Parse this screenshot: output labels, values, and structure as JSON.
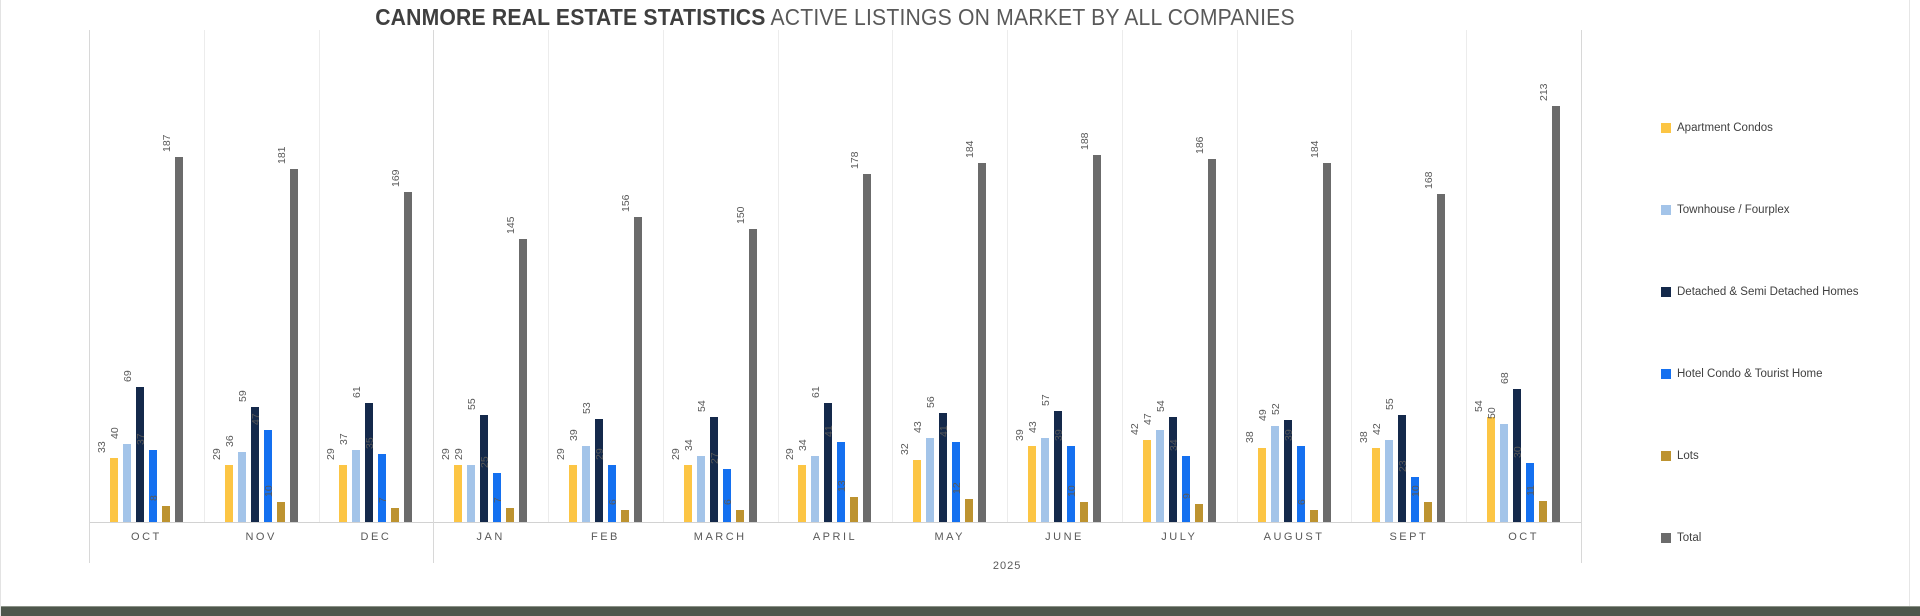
{
  "title": {
    "bold": "CANMORE REAL ESTATE STATISTICS",
    "regular": "ACTIVE LISTINGS ON MARKET BY ALL COMPANIES"
  },
  "chart_data": {
    "type": "bar",
    "title": "CANMORE REAL ESTATE STATISTICS ACTIVE LISTINGS ON MARKET BY ALL COMPANIES",
    "xlabel": "",
    "ylabel": "",
    "ylim": [
      0,
      250
    ],
    "grid": false,
    "legend_position": "right",
    "value_labels": "rotated-90-above-bars",
    "categories": [
      "OCT",
      "NOV",
      "DEC",
      "JAN",
      "FEB",
      "MARCH",
      "APRIL",
      "MAY",
      "JUNE",
      "JULY",
      "AUGUST",
      "SEPT",
      "OCT"
    ],
    "year_label": "2025",
    "year_span": {
      "start_index": 3,
      "end_index": 12
    },
    "series": [
      {
        "name": "Apartment Condos",
        "color": "#FCC544",
        "values": [
          33,
          29,
          29,
          29,
          29,
          29,
          29,
          32,
          39,
          42,
          38,
          38,
          54
        ]
      },
      {
        "name": "Townhouse / Fourplex",
        "color": "#A3C4E9",
        "values": [
          40,
          36,
          37,
          29,
          39,
          34,
          34,
          43,
          43,
          47,
          49,
          42,
          50
        ]
      },
      {
        "name": "Detached & Semi Detached Homes",
        "color": "#14294B",
        "values": [
          69,
          59,
          61,
          55,
          53,
          54,
          61,
          56,
          57,
          54,
          52,
          55,
          68
        ]
      },
      {
        "name": "Hotel Condo & Tourist Home",
        "color": "#1470F0",
        "values": [
          37,
          47,
          35,
          25,
          29,
          27,
          41,
          41,
          39,
          34,
          39,
          23,
          30
        ]
      },
      {
        "name": "Lots",
        "color": "#BD9330",
        "values": [
          8,
          10,
          7,
          7,
          6,
          6,
          13,
          12,
          10,
          9,
          6,
          10,
          11
        ]
      },
      {
        "name": "Total",
        "color": "#6B6B6B",
        "values": [
          187,
          181,
          169,
          145,
          156,
          150,
          178,
          184,
          188,
          186,
          184,
          168,
          213
        ]
      }
    ],
    "label_color": "#595959",
    "axis_line_color": "#D2D2D2"
  }
}
